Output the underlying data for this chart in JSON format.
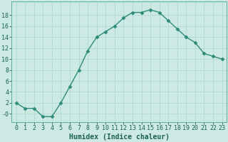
{
  "x": [
    0,
    1,
    2,
    3,
    4,
    5,
    6,
    7,
    8,
    9,
    10,
    11,
    12,
    13,
    14,
    15,
    16,
    17,
    18,
    19,
    20,
    21,
    22,
    23
  ],
  "y": [
    2,
    1,
    1,
    -0.5,
    -0.5,
    2,
    5,
    8,
    11.5,
    14,
    15,
    16,
    17.5,
    18.5,
    18.5,
    19,
    18.5,
    17,
    15.5,
    14,
    13,
    11,
    10.5,
    10
  ],
  "line_color": "#2d8b7a",
  "marker": "D",
  "marker_size": 2.5,
  "background_color": "#cce9e4",
  "grid_color": "#afd8d0",
  "xlabel": "Humidex (Indice chaleur)",
  "xlim": [
    -0.5,
    23.5
  ],
  "ylim": [
    -1.5,
    20.5
  ],
  "yticks": [
    0,
    2,
    4,
    6,
    8,
    10,
    12,
    14,
    16,
    18
  ],
  "ytick_labels": [
    "-0",
    "2",
    "4",
    "6",
    "8",
    "10",
    "12",
    "14",
    "16",
    "18"
  ],
  "xlabel_fontsize": 7,
  "tick_fontsize": 6,
  "line_width": 1.0,
  "title_color": "#1a6055",
  "spine_color": "#5aada0"
}
